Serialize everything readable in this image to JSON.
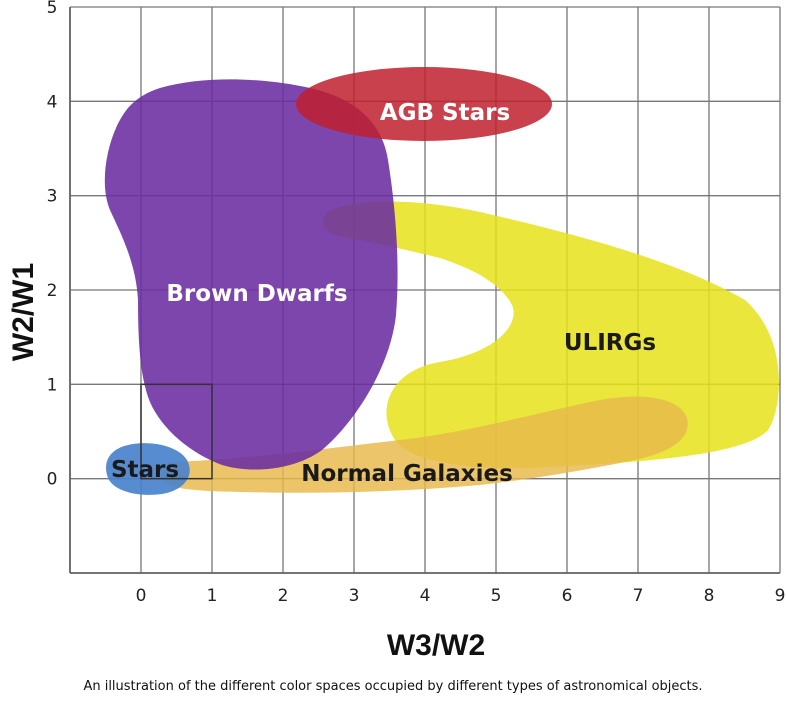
{
  "axes": {
    "xlabel": "W3/W2",
    "ylabel": "W2/W1",
    "xlim": [
      -1,
      9
    ],
    "ylim": [
      -1,
      5
    ],
    "xticks": [
      "0",
      "1",
      "2",
      "3",
      "4",
      "5",
      "6",
      "7",
      "8",
      "9"
    ],
    "yticks": [
      "0",
      "1",
      "2",
      "3",
      "4",
      "5"
    ],
    "grid": true
  },
  "regions": [
    {
      "key": "agb",
      "label": "AGB Stars",
      "color": "#c0202e",
      "label_color": "#ffffff"
    },
    {
      "key": "ulirgs",
      "label": "ULIRGs",
      "color": "#e6e21a",
      "label_color": "#1a1a1a"
    },
    {
      "key": "normal",
      "label": "Normal Galaxies",
      "color": "#e8b84a",
      "label_color": "#1a1a1a"
    },
    {
      "key": "brown",
      "label": "Brown Dwarfs",
      "color": "#6a2ca0",
      "label_color": "#ffffff"
    },
    {
      "key": "stars",
      "label": "Stars",
      "color": "#4a82cc",
      "label_color": "#1a1a1a"
    }
  ],
  "caption": "An illustration of the different color spaces occupied by different types of astronomical objects."
}
